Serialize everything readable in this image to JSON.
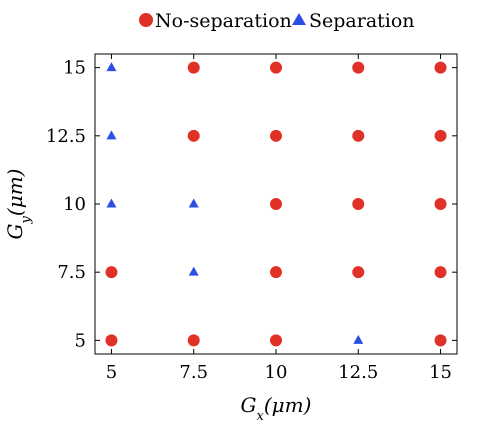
{
  "chart_data": {
    "type": "scatter",
    "xlabel": "G_x(μm)",
    "ylabel": "G_y(μm)",
    "xlim": [
      4.5,
      15.5
    ],
    "ylim": [
      4.5,
      15.5
    ],
    "xticks": [
      "5",
      "7.5",
      "10",
      "12.5",
      "15"
    ],
    "yticks": [
      "5",
      "7.5",
      "10",
      "12.5",
      "15"
    ],
    "grid": false,
    "legend_position": "top",
    "series": [
      {
        "name": "No-separation",
        "marker": "circle",
        "color": "#e03127",
        "points": [
          [
            5,
            5
          ],
          [
            5,
            7.5
          ],
          [
            7.5,
            5
          ],
          [
            7.5,
            12.5
          ],
          [
            7.5,
            15
          ],
          [
            10,
            5
          ],
          [
            10,
            7.5
          ],
          [
            10,
            10
          ],
          [
            10,
            12.5
          ],
          [
            10,
            15
          ],
          [
            12.5,
            7.5
          ],
          [
            12.5,
            10
          ],
          [
            12.5,
            12.5
          ],
          [
            12.5,
            15
          ],
          [
            15,
            5
          ],
          [
            15,
            7.5
          ],
          [
            15,
            10
          ],
          [
            15,
            12.5
          ],
          [
            15,
            15
          ]
        ]
      },
      {
        "name": "Separation",
        "marker": "triangle",
        "color": "#2a4ee6",
        "points": [
          [
            5,
            10
          ],
          [
            5,
            12.5
          ],
          [
            5,
            15
          ],
          [
            7.5,
            7.5
          ],
          [
            7.5,
            10
          ],
          [
            12.5,
            5
          ]
        ]
      }
    ]
  }
}
